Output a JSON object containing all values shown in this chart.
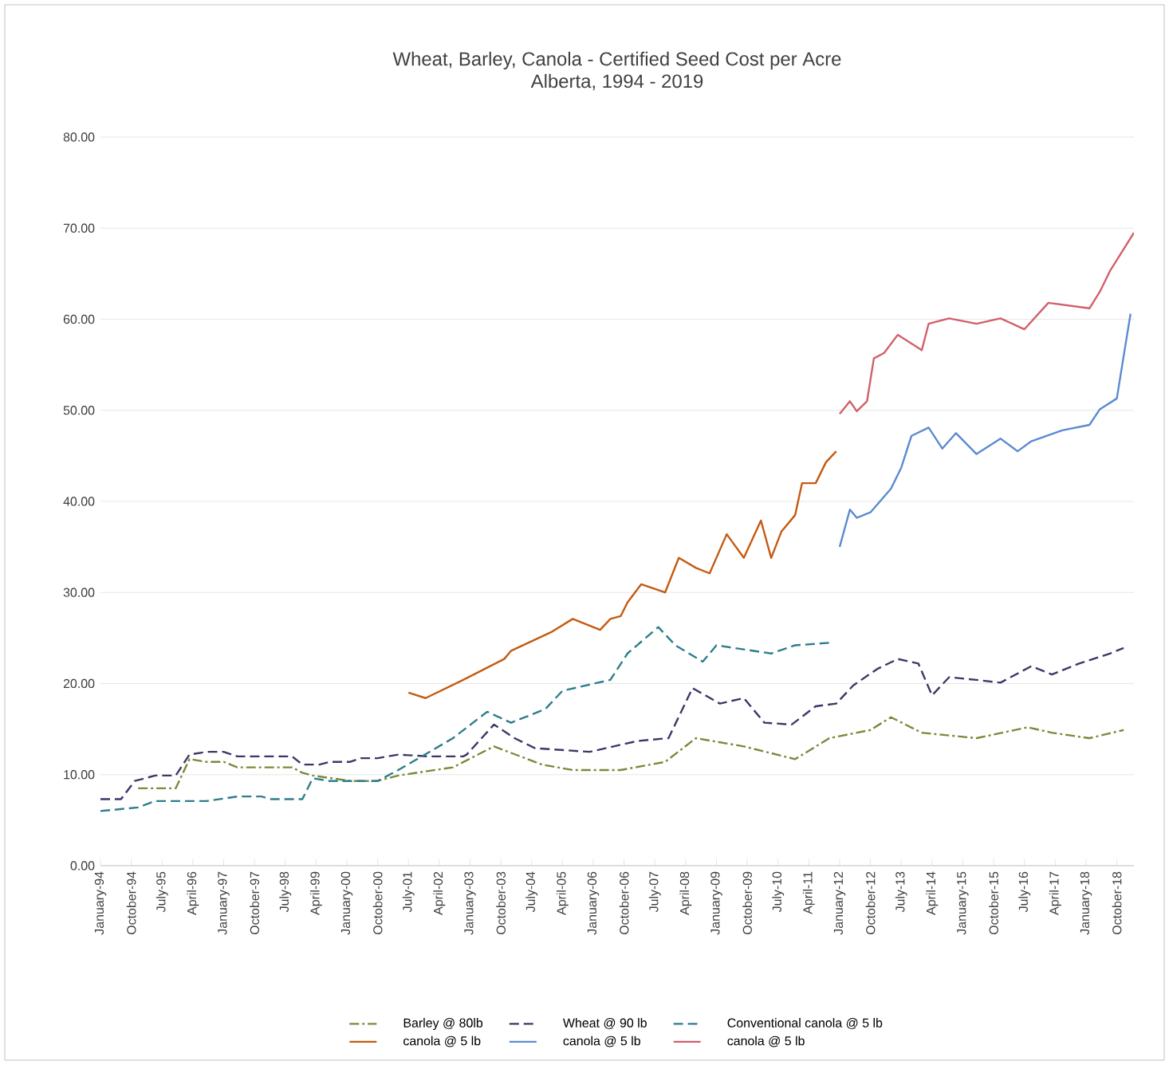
{
  "chart_data": {
    "type": "line",
    "title": "Wheat, Barley, Canola - Certified Seed Cost per Acre",
    "subtitle": "Alberta, 1994 - 2019",
    "xlim": [
      "1994-01",
      "2019-03"
    ],
    "xticks": [
      {
        "value": "1994-01",
        "label": "January-94"
      },
      {
        "value": "1994-10",
        "label": "October-94"
      },
      {
        "value": "1995-07",
        "label": "July-95"
      },
      {
        "value": "1996-04",
        "label": "April-96"
      },
      {
        "value": "1997-01",
        "label": "January-97"
      },
      {
        "value": "1997-10",
        "label": "October-97"
      },
      {
        "value": "1998-07",
        "label": "July-98"
      },
      {
        "value": "1999-04",
        "label": "April-99"
      },
      {
        "value": "2000-01",
        "label": "January-00"
      },
      {
        "value": "2000-10",
        "label": "October-00"
      },
      {
        "value": "2001-07",
        "label": "July-01"
      },
      {
        "value": "2002-04",
        "label": "April-02"
      },
      {
        "value": "2003-01",
        "label": "January-03"
      },
      {
        "value": "2003-10",
        "label": "October-03"
      },
      {
        "value": "2004-07",
        "label": "July-04"
      },
      {
        "value": "2005-04",
        "label": "April-05"
      },
      {
        "value": "2006-01",
        "label": "January-06"
      },
      {
        "value": "2006-10",
        "label": "October-06"
      },
      {
        "value": "2007-07",
        "label": "July-07"
      },
      {
        "value": "2008-04",
        "label": "April-08"
      },
      {
        "value": "2009-01",
        "label": "January-09"
      },
      {
        "value": "2009-10",
        "label": "October-09"
      },
      {
        "value": "2010-07",
        "label": "July-10"
      },
      {
        "value": "2011-04",
        "label": "April-11"
      },
      {
        "value": "2012-01",
        "label": "January-12"
      },
      {
        "value": "2012-10",
        "label": "October-12"
      },
      {
        "value": "2013-07",
        "label": "July-13"
      },
      {
        "value": "2014-04",
        "label": "April-14"
      },
      {
        "value": "2015-01",
        "label": "January-15"
      },
      {
        "value": "2015-10",
        "label": "October-15"
      },
      {
        "value": "2016-07",
        "label": "July-16"
      },
      {
        "value": "2017-04",
        "label": "April-17"
      },
      {
        "value": "2018-01",
        "label": "January-18"
      },
      {
        "value": "2018-10",
        "label": "October-18"
      }
    ],
    "ylim": [
      0,
      80
    ],
    "yticks": [
      {
        "value": 0,
        "label": "0.00"
      },
      {
        "value": 10,
        "label": "10.00"
      },
      {
        "value": 20,
        "label": "20.00"
      },
      {
        "value": 30,
        "label": "30.00"
      },
      {
        "value": 40,
        "label": "40.00"
      },
      {
        "value": 50,
        "label": "50.00"
      },
      {
        "value": 60,
        "label": "60.00"
      },
      {
        "value": 70,
        "label": "70.00"
      },
      {
        "value": 80,
        "label": "80.00"
      }
    ],
    "grid": "y",
    "legend": "bottom",
    "series": [
      {
        "name": "Barley @ 80lb",
        "color": "#7a8a3a",
        "line_style": "dashdot",
        "x": [
          "1994-12",
          "1995-11",
          "1996-03",
          "1996-08",
          "1997-01",
          "1997-05",
          "1998-09",
          "1998-12",
          "1999-03",
          "2000-02",
          "2000-10",
          "2001-04",
          "2002-08",
          "2003-08",
          "2004-10",
          "2005-07",
          "2006-09",
          "2007-10",
          "2008-07",
          "2009-09",
          "2010-12",
          "2011-10",
          "2012-10",
          "2013-04",
          "2014-01",
          "2015-05",
          "2016-08",
          "2017-03",
          "2018-02",
          "2018-12"
        ],
        "values": [
          8.5,
          8.5,
          11.7,
          11.4,
          11.4,
          10.8,
          10.8,
          10.2,
          9.9,
          9.3,
          9.3,
          9.9,
          10.8,
          13.1,
          11.1,
          10.5,
          10.5,
          11.4,
          14.0,
          13.1,
          11.7,
          14.0,
          14.9,
          16.3,
          14.6,
          14.0,
          15.2,
          14.6,
          14.0,
          14.9
        ]
      },
      {
        "name": "Wheat @ 90 lb",
        "color": "#3b3868",
        "line_style": "dashed",
        "x": [
          "1994-01",
          "1994-07",
          "1994-11",
          "1995-05",
          "1995-11",
          "1996-03",
          "1996-08",
          "1997-01",
          "1997-05",
          "1997-12",
          "1998-03",
          "1998-09",
          "1998-12",
          "1999-05",
          "1999-08",
          "2000-02",
          "2000-05",
          "2000-10",
          "2001-04",
          "2002-01",
          "2002-11",
          "2002-12",
          "2003-08",
          "2004-02",
          "2004-08",
          "2005-12",
          "2007-02",
          "2007-11",
          "2008-06",
          "2009-02",
          "2009-09",
          "2010-03",
          "2010-11",
          "2011-06",
          "2011-12",
          "2012-05",
          "2012-12",
          "2013-06",
          "2013-12",
          "2014-04",
          "2014-09",
          "2015-05",
          "2015-12",
          "2016-09",
          "2017-03",
          "2017-11",
          "2018-08",
          "2018-12"
        ],
        "values": [
          7.3,
          7.3,
          9.3,
          9.9,
          9.9,
          12.2,
          12.5,
          12.5,
          12.0,
          12.0,
          12.0,
          12.0,
          11.1,
          11.1,
          11.4,
          11.4,
          11.8,
          11.8,
          12.2,
          12.0,
          12.0,
          12.2,
          15.5,
          14.0,
          12.9,
          12.5,
          13.7,
          14.0,
          19.5,
          17.8,
          18.4,
          15.7,
          15.5,
          17.5,
          17.8,
          19.8,
          21.6,
          22.7,
          22.2,
          18.7,
          20.7,
          20.4,
          20.1,
          21.9,
          21.0,
          22.2,
          23.3,
          23.9
        ]
      },
      {
        "name": "Conventional canola @ 5 lb",
        "color": "#2e7d8c",
        "line_style": "dashed",
        "x": [
          "1994-01",
          "1994-12",
          "1995-05",
          "1996-08",
          "1997-05",
          "1997-12",
          "1998-03",
          "1998-12",
          "1999-03",
          "1999-08",
          "2000-10",
          "2001-04",
          "2002-08",
          "2003-06",
          "2004-01",
          "2004-11",
          "2005-04",
          "2006-06",
          "2006-11",
          "2007-08",
          "2008-01",
          "2008-09",
          "2009-01",
          "2010-05",
          "2010-12",
          "2011-11"
        ],
        "values": [
          6.0,
          6.4,
          7.1,
          7.1,
          7.6,
          7.6,
          7.3,
          7.3,
          9.6,
          9.3,
          9.3,
          10.5,
          14.0,
          16.9,
          15.7,
          17.2,
          19.2,
          20.4,
          23.3,
          26.2,
          24.2,
          22.4,
          24.2,
          23.3,
          24.2,
          24.5
        ]
      },
      {
        "name": "canola @ 5 lb",
        "color": "#c55a11",
        "line_style": "solid",
        "x": [
          "2001-07",
          "2001-12",
          "2002-11",
          "2003-11",
          "2004-01",
          "2005-01",
          "2005-07",
          "2006-03",
          "2006-06",
          "2006-09",
          "2006-11",
          "2007-03",
          "2007-10",
          "2008-02",
          "2008-07",
          "2008-11",
          "2009-04",
          "2009-09",
          "2010-02",
          "2010-05",
          "2010-08",
          "2010-12",
          "2011-02",
          "2011-06",
          "2011-09",
          "2011-12"
        ],
        "values": [
          19.0,
          18.4,
          20.4,
          22.7,
          23.6,
          25.7,
          27.1,
          25.9,
          27.1,
          27.4,
          28.9,
          30.9,
          30.0,
          33.8,
          32.7,
          32.1,
          36.4,
          33.8,
          37.9,
          33.8,
          36.7,
          38.5,
          42.0,
          42.0,
          44.3,
          45.5
        ]
      },
      {
        "name": "canola @ 5 lb",
        "color": "#5b8ad0",
        "line_style": "solid",
        "x": [
          "2012-01",
          "2012-04",
          "2012-06",
          "2012-10",
          "2013-04",
          "2013-07",
          "2013-10",
          "2014-03",
          "2014-07",
          "2014-11",
          "2015-05",
          "2015-12",
          "2016-05",
          "2016-09",
          "2017-06",
          "2018-02",
          "2018-05",
          "2018-10",
          "2019-02"
        ],
        "values": [
          35.0,
          39.1,
          38.2,
          38.8,
          41.4,
          43.7,
          47.2,
          48.1,
          45.8,
          47.5,
          45.2,
          46.9,
          45.5,
          46.6,
          47.8,
          48.4,
          50.1,
          51.3,
          60.6
        ]
      },
      {
        "name": "canola @ 5 lb",
        "color": "#d0606a",
        "line_style": "solid",
        "x": [
          "2012-01",
          "2012-04",
          "2012-06",
          "2012-09",
          "2012-11",
          "2013-02",
          "2013-06",
          "2014-01",
          "2014-03",
          "2014-09",
          "2015-05",
          "2015-12",
          "2016-07",
          "2017-02",
          "2018-02",
          "2018-05",
          "2018-08",
          "2019-03"
        ],
        "values": [
          49.6,
          51.0,
          49.9,
          51.0,
          55.7,
          56.3,
          58.3,
          56.6,
          59.5,
          60.1,
          59.5,
          60.1,
          58.9,
          61.8,
          61.2,
          63.0,
          65.3,
          69.5
        ]
      }
    ]
  }
}
